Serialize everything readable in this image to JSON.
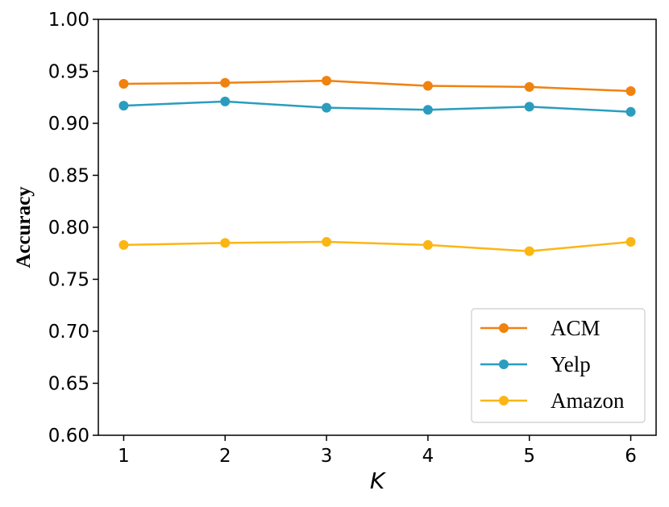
{
  "chart_data": {
    "type": "line",
    "title": "",
    "xlabel": "K",
    "ylabel": "Accuracy",
    "x": [
      1,
      2,
      3,
      4,
      5,
      6
    ],
    "xticks": [
      "1",
      "2",
      "3",
      "4",
      "5",
      "6"
    ],
    "ylim": [
      0.6,
      1.0
    ],
    "yticks": [
      "0.60",
      "0.65",
      "0.70",
      "0.75",
      "0.80",
      "0.85",
      "0.90",
      "0.95",
      "1.00"
    ],
    "grid": false,
    "legend_position": "lower-right",
    "series": [
      {
        "name": "ACM",
        "color": "#F0820F",
        "values": [
          0.938,
          0.939,
          0.941,
          0.936,
          0.935,
          0.931
        ]
      },
      {
        "name": "Yelp",
        "color": "#2A9DBE",
        "values": [
          0.917,
          0.921,
          0.915,
          0.913,
          0.916,
          0.911
        ]
      },
      {
        "name": "Amazon",
        "color": "#FBB614",
        "values": [
          0.783,
          0.785,
          0.786,
          0.783,
          0.777,
          0.786
        ]
      }
    ]
  }
}
